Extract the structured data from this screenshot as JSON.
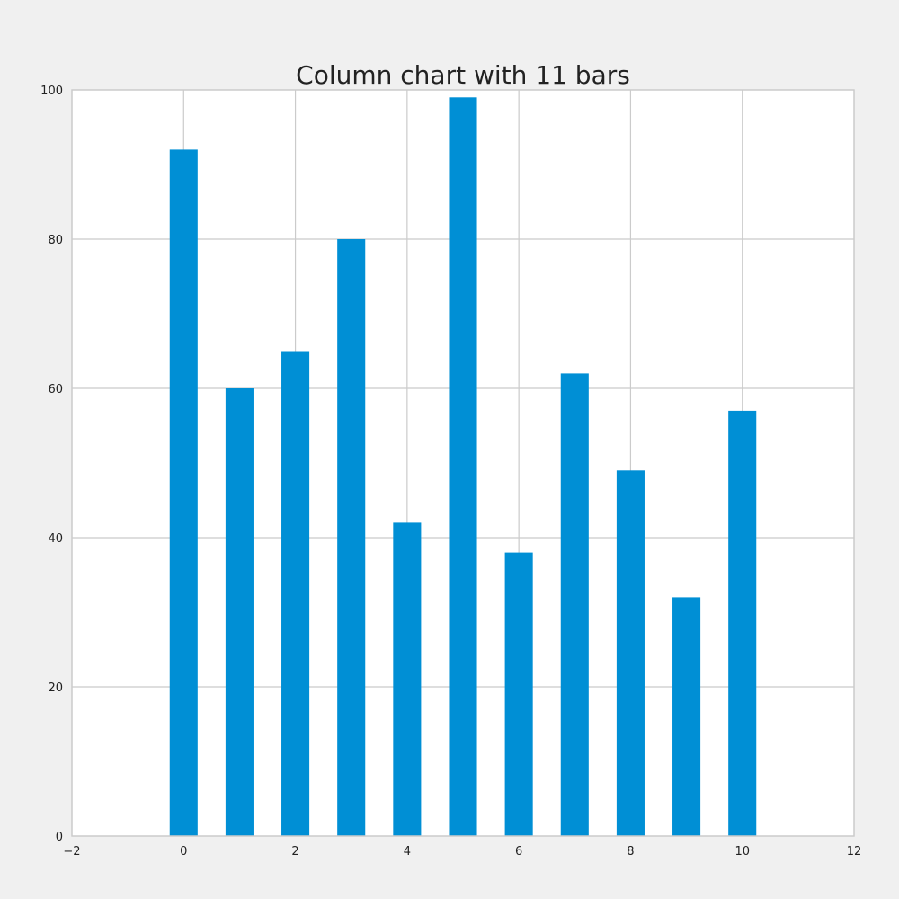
{
  "chart_data": {
    "type": "bar",
    "title": "Column chart with 11 bars",
    "xlabel": "",
    "ylabel": "",
    "x": [
      0,
      1,
      2,
      3,
      4,
      5,
      6,
      7,
      8,
      9,
      10
    ],
    "values": [
      92,
      60,
      65,
      80,
      42,
      99,
      38,
      62,
      49,
      32,
      57
    ],
    "bar_width": 0.5,
    "xlim": [
      -2,
      12
    ],
    "ylim": [
      0,
      100
    ],
    "x_ticks": [
      -2,
      0,
      2,
      4,
      6,
      8,
      10,
      12
    ],
    "x_tick_labels": [
      "−2",
      "0",
      "2",
      "4",
      "6",
      "8",
      "10",
      "12"
    ],
    "y_ticks": [
      0,
      20,
      40,
      60,
      80,
      100
    ],
    "y_tick_labels": [
      "0",
      "20",
      "40",
      "60",
      "80",
      "100"
    ],
    "grid": true,
    "legend": "none",
    "colors": {
      "bar": "#008fd5",
      "background": "#f0f0f0",
      "plot_background": "#ffffff",
      "grid": "#cbcbcb",
      "text": "#222222"
    }
  }
}
